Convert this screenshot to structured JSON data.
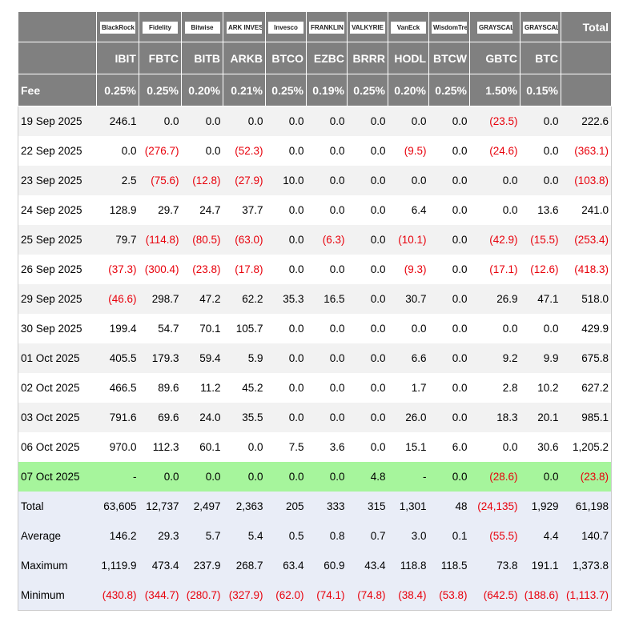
{
  "columns": [
    {
      "logo": "BlackRock",
      "ticker": "IBIT",
      "fee": "0.25%"
    },
    {
      "logo": "Fidelity",
      "ticker": "FBTC",
      "fee": "0.25%"
    },
    {
      "logo": "Bitwise",
      "ticker": "BITB",
      "fee": "0.20%"
    },
    {
      "logo": "ARK INVEST",
      "ticker": "ARKB",
      "fee": "0.21%"
    },
    {
      "logo": "Invesco",
      "ticker": "BTCO",
      "fee": "0.25%"
    },
    {
      "logo": "FRANKLIN TEMPLETON",
      "ticker": "EZBC",
      "fee": "0.19%"
    },
    {
      "logo": "VALKYRIE",
      "ticker": "BRRR",
      "fee": "0.25%"
    },
    {
      "logo": "VanEck",
      "ticker": "HODL",
      "fee": "0.20%"
    },
    {
      "logo": "WisdomTree",
      "ticker": "BTCW",
      "fee": "0.25%"
    },
    {
      "logo": "GRAYSCALE",
      "ticker": "GBTC",
      "fee": "1.50%"
    },
    {
      "logo": "GRAYSCALE",
      "ticker": "BTC",
      "fee": "0.15%"
    }
  ],
  "total_header": "Total",
  "fee_label": "Fee",
  "rows": [
    {
      "label": "19 Sep 2025",
      "values": [
        "246.1",
        "0.0",
        "0.0",
        "0.0",
        "0.0",
        "0.0",
        "0.0",
        "0.0",
        "0.0",
        "(23.5)",
        "0.0",
        "222.6"
      ]
    },
    {
      "label": "22 Sep 2025",
      "values": [
        "0.0",
        "(276.7)",
        "0.0",
        "(52.3)",
        "0.0",
        "0.0",
        "0.0",
        "(9.5)",
        "0.0",
        "(24.6)",
        "0.0",
        "(363.1)"
      ]
    },
    {
      "label": "23 Sep 2025",
      "values": [
        "2.5",
        "(75.6)",
        "(12.8)",
        "(27.9)",
        "10.0",
        "0.0",
        "0.0",
        "0.0",
        "0.0",
        "0.0",
        "0.0",
        "(103.8)"
      ]
    },
    {
      "label": "24 Sep 2025",
      "values": [
        "128.9",
        "29.7",
        "24.7",
        "37.7",
        "0.0",
        "0.0",
        "0.0",
        "6.4",
        "0.0",
        "0.0",
        "13.6",
        "241.0"
      ]
    },
    {
      "label": "25 Sep 2025",
      "values": [
        "79.7",
        "(114.8)",
        "(80.5)",
        "(63.0)",
        "0.0",
        "(6.3)",
        "0.0",
        "(10.1)",
        "0.0",
        "(42.9)",
        "(15.5)",
        "(253.4)"
      ]
    },
    {
      "label": "26 Sep 2025",
      "values": [
        "(37.3)",
        "(300.4)",
        "(23.8)",
        "(17.8)",
        "0.0",
        "0.0",
        "0.0",
        "(9.3)",
        "0.0",
        "(17.1)",
        "(12.6)",
        "(418.3)"
      ]
    },
    {
      "label": "29 Sep 2025",
      "values": [
        "(46.6)",
        "298.7",
        "47.2",
        "62.2",
        "35.3",
        "16.5",
        "0.0",
        "30.7",
        "0.0",
        "26.9",
        "47.1",
        "518.0"
      ]
    },
    {
      "label": "30 Sep 2025",
      "values": [
        "199.4",
        "54.7",
        "70.1",
        "105.7",
        "0.0",
        "0.0",
        "0.0",
        "0.0",
        "0.0",
        "0.0",
        "0.0",
        "429.9"
      ]
    },
    {
      "label": "01 Oct 2025",
      "values": [
        "405.5",
        "179.3",
        "59.4",
        "5.9",
        "0.0",
        "0.0",
        "0.0",
        "6.6",
        "0.0",
        "9.2",
        "9.9",
        "675.8"
      ]
    },
    {
      "label": "02 Oct 2025",
      "values": [
        "466.5",
        "89.6",
        "11.2",
        "45.2",
        "0.0",
        "0.0",
        "0.0",
        "1.7",
        "0.0",
        "2.8",
        "10.2",
        "627.2"
      ]
    },
    {
      "label": "03 Oct 2025",
      "values": [
        "791.6",
        "69.6",
        "24.0",
        "35.5",
        "0.0",
        "0.0",
        "0.0",
        "26.0",
        "0.0",
        "18.3",
        "20.1",
        "985.1"
      ]
    },
    {
      "label": "06 Oct 2025",
      "values": [
        "970.0",
        "112.3",
        "60.1",
        "0.0",
        "7.5",
        "3.6",
        "0.0",
        "15.1",
        "6.0",
        "0.0",
        "30.6",
        "1,205.2"
      ]
    },
    {
      "label": "07 Oct 2025",
      "highlight": true,
      "values": [
        "-",
        "0.0",
        "0.0",
        "0.0",
        "0.0",
        "0.0",
        "4.8",
        "-",
        "0.0",
        "(28.6)",
        "0.0",
        "(23.8)"
      ]
    }
  ],
  "summary": [
    {
      "label": "Total",
      "values": [
        "63,605",
        "12,737",
        "2,497",
        "2,363",
        "205",
        "333",
        "315",
        "1,301",
        "48",
        "(24,135)",
        "1,929",
        "61,198"
      ]
    },
    {
      "label": "Average",
      "values": [
        "146.2",
        "29.3",
        "5.7",
        "5.4",
        "0.5",
        "0.8",
        "0.7",
        "3.0",
        "0.1",
        "(55.5)",
        "4.4",
        "140.7"
      ]
    },
    {
      "label": "Maximum",
      "values": [
        "1,119.9",
        "473.4",
        "237.9",
        "268.7",
        "63.4",
        "60.9",
        "43.4",
        "118.8",
        "118.5",
        "73.8",
        "191.1",
        "1,373.8"
      ]
    },
    {
      "label": "Minimum",
      "values": [
        "(430.8)",
        "(344.7)",
        "(280.7)",
        "(327.9)",
        "(62.0)",
        "(74.1)",
        "(74.8)",
        "(38.4)",
        "(53.8)",
        "(642.5)",
        "(188.6)",
        "(1,113.7)"
      ]
    }
  ]
}
